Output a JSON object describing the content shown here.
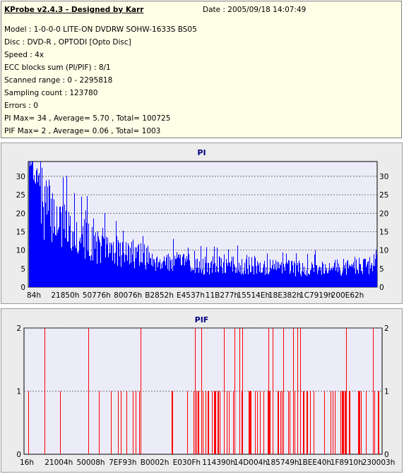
{
  "header": {
    "title": "KProbe v2.4.3 - Designed by Karr",
    "date": "Date : 2005/09/18 14:07:49",
    "lines": [
      "Model : 1-0-0-0 LITE-ON DVDRW SOHW-1633S BS05",
      "Disc : DVD-R , OPTODI [Opto Disc]",
      "Speed : 4x",
      "ECC blocks sum (PI/PIF) : 8/1",
      "Scanned range : 0 - 2295818",
      "Sampling count : 123780",
      "Errors : 0",
      "PI Max= 34 , Average= 5.70 , Total= 100725",
      "PIF Max= 2 , Average= 0.06 , Total= 1003"
    ]
  },
  "chart_data": [
    {
      "type": "area",
      "title": "PI",
      "color": "#0000ff",
      "ylim": [
        0,
        34
      ],
      "yticks": [
        0,
        5,
        10,
        15,
        20,
        25,
        30
      ],
      "xticks": [
        "84h",
        "21850h",
        "50776h",
        "80076h",
        "B2852h",
        "E4537h",
        "11B277h",
        "15514Eh",
        "18E382h",
        "1C7919h",
        "200E62h"
      ],
      "profile": {
        "x": [
          0,
          0.02,
          0.05,
          0.1,
          0.15,
          0.2,
          0.3,
          0.4,
          0.5,
          0.6,
          0.7,
          0.8,
          0.9,
          1.0
        ],
        "y": [
          31,
          27,
          22,
          17,
          14,
          11,
          9,
          7,
          6,
          6,
          5.5,
          5.2,
          5.5,
          6.5
        ]
      },
      "max": 34,
      "average": 5.7
    },
    {
      "type": "bar",
      "title": "PIF",
      "color": "#ff0000",
      "ylim": [
        0,
        2
      ],
      "yticks": [
        0,
        1,
        2
      ],
      "xticks": [
        "16h",
        "21004h",
        "50008h",
        "7EF93h",
        "B0002h",
        "E030Fh",
        "114390h",
        "14D004h",
        "185749h",
        "1BEE40h",
        "1F8910h",
        "230003h"
      ],
      "max": 2,
      "average": 0.06
    }
  ]
}
